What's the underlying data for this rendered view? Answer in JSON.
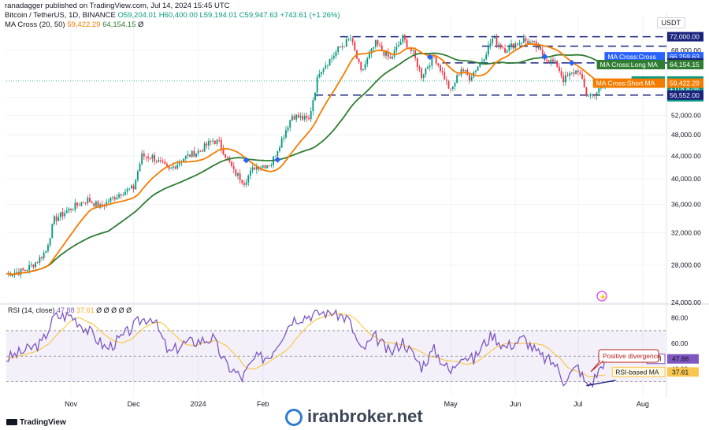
{
  "header": {
    "published": "ranadagger published on TradingView.com, Jul 14, 2024 15:45 UTC",
    "symbol": "Bitcoin / TetherUS, 1D, BINANCE",
    "ohlc": "O59,204.01 H60,400.00 L59,194.01 C59,947.63 +743.61 (+1.26%)",
    "ma": "MA Cross (20, 50)",
    "ma_short": "59,422.29",
    "ma_long": "64,154.15",
    "ma_tail": "Ø"
  },
  "currency": "USDT",
  "rsi_header": {
    "label": "RSI (14, close)",
    "value": "47.88",
    "ma_value": "37.61",
    "tail": "Ø Ø Ø Ø Ø"
  },
  "footer": {
    "brand": "TradingView",
    "watermark": "iranbroker.net"
  },
  "price_labels": [
    {
      "text": "72,000.00",
      "color": "#1a237e",
      "value": 72000
    },
    {
      "text": "MA Cross:Cross",
      "color": "#2962ff",
      "value": 66259.63,
      "val_text": "66,259.63"
    },
    {
      "text": "64,602.00",
      "color": "#1a237e",
      "value": 64602
    },
    {
      "text": "MA Cross:Long MA",
      "color": "#2e7d32",
      "value": 64154.15,
      "val_text": "64,154.15"
    },
    {
      "text": "BTCUSDT",
      "color": "#089981",
      "value": 59947.63,
      "val_text": "59,947.63",
      "extra": [
        "+118.87%",
        "08:14:34"
      ]
    },
    {
      "text": "MA Cross:Short MA",
      "color": "#f57c00",
      "value": 59422.29,
      "val_text": "59,422.29"
    },
    {
      "text": "56,552.00",
      "color": "#1a237e",
      "value": 56552
    }
  ],
  "annotation": "Positive divergence",
  "rsi_labels": [
    {
      "text": "RSI",
      "val_text": "47.88",
      "color": "#7e57c2"
    },
    {
      "text": "RSI-based MA",
      "val_text": "37.61",
      "color": "#f9c74f"
    }
  ],
  "colors": {
    "up": "#089981",
    "down": "#f23645",
    "short_ma": "#f57c00",
    "long_ma": "#2e7d32",
    "rsi": "#7e57c2",
    "rsi_ma": "#fbc02d",
    "levels": "#1a237e"
  },
  "chart_data": {
    "type": "candlestick",
    "price_axis": {
      "scale": "log",
      "ticks": [
        "24,000.00",
        "28,000.00",
        "32,000.00",
        "36,000.00",
        "40,000.00",
        "44,000.00",
        "48,000.00",
        "52,000.00",
        "56,000.00",
        "68,000.00"
      ],
      "tick_values": [
        24000,
        28000,
        32000,
        36000,
        40000,
        44000,
        48000,
        52000,
        56000,
        68000
      ],
      "ylim": [
        24000,
        76000
      ]
    },
    "x_axis": {
      "ticks": [
        "Nov",
        "Dec",
        "2024",
        "Feb",
        "May",
        "Jun",
        "Jul",
        "Aug"
      ],
      "tick_dates": [
        "2023-11-01",
        "2023-12-01",
        "2024-01-01",
        "2024-02-01",
        "2024-05-01",
        "2024-06-01",
        "2024-07-01",
        "2024-08-01"
      ],
      "range": [
        "2023-10-01",
        "2024-08-12"
      ]
    },
    "horizontal_levels": [
      72000,
      64602,
      56552
    ],
    "close_anchors": [
      [
        "2023-10-01",
        27000
      ],
      [
        "2023-10-10",
        27400
      ],
      [
        "2023-10-16",
        28500
      ],
      [
        "2023-10-20",
        29700
      ],
      [
        "2023-10-24",
        33800
      ],
      [
        "2023-11-01",
        35400
      ],
      [
        "2023-11-09",
        36700
      ],
      [
        "2023-11-15",
        35600
      ],
      [
        "2023-11-25",
        37800
      ],
      [
        "2023-12-01",
        38500
      ],
      [
        "2023-12-05",
        44000
      ],
      [
        "2023-12-10",
        43800
      ],
      [
        "2023-12-18",
        41400
      ],
      [
        "2023-12-25",
        43600
      ],
      [
        "2024-01-02",
        45000
      ],
      [
        "2024-01-08",
        46900
      ],
      [
        "2024-01-11",
        46400
      ],
      [
        "2024-01-18",
        41200
      ],
      [
        "2024-01-23",
        39500
      ],
      [
        "2024-01-28",
        42000
      ],
      [
        "2024-02-05",
        42600
      ],
      [
        "2024-02-10",
        47100
      ],
      [
        "2024-02-15",
        52000
      ],
      [
        "2024-02-23",
        51000
      ],
      [
        "2024-02-28",
        62500
      ],
      [
        "2024-03-05",
        66000
      ],
      [
        "2024-03-08",
        68300
      ],
      [
        "2024-03-14",
        71500
      ],
      [
        "2024-03-19",
        62000
      ],
      [
        "2024-03-26",
        70000
      ],
      [
        "2024-04-02",
        65500
      ],
      [
        "2024-04-08",
        71600
      ],
      [
        "2024-04-13",
        67000
      ],
      [
        "2024-04-17",
        61300
      ],
      [
        "2024-04-23",
        66500
      ],
      [
        "2024-05-01",
        57300
      ],
      [
        "2024-05-06",
        63200
      ],
      [
        "2024-05-10",
        60800
      ],
      [
        "2024-05-16",
        65300
      ],
      [
        "2024-05-21",
        71400
      ],
      [
        "2024-05-27",
        68400
      ],
      [
        "2024-06-05",
        71100
      ],
      [
        "2024-06-10",
        69600
      ],
      [
        "2024-06-15",
        66200
      ],
      [
        "2024-06-21",
        64000
      ],
      [
        "2024-06-24",
        60300
      ],
      [
        "2024-07-01",
        62800
      ],
      [
        "2024-07-05",
        56600
      ],
      [
        "2024-07-08",
        56700
      ],
      [
        "2024-07-12",
        57900
      ],
      [
        "2024-07-14",
        59947.63
      ]
    ],
    "rsi": {
      "axis_ticks": [
        "40.00",
        "60.00",
        "80.00"
      ],
      "tick_values": [
        40,
        60,
        80
      ],
      "ylim": [
        23,
        86
      ],
      "band": [
        30,
        70
      ],
      "anchors": [
        [
          "2023-10-01",
          48
        ],
        [
          "2023-10-18",
          60
        ],
        [
          "2023-10-24",
          81
        ],
        [
          "2023-11-01",
          82
        ],
        [
          "2023-11-10",
          69
        ],
        [
          "2023-11-18",
          56
        ],
        [
          "2023-11-25",
          64
        ],
        [
          "2023-12-04",
          78
        ],
        [
          "2023-12-10",
          81
        ],
        [
          "2023-12-18",
          52
        ],
        [
          "2023-12-25",
          60
        ],
        [
          "2024-01-08",
          64
        ],
        [
          "2024-01-14",
          44
        ],
        [
          "2024-01-22",
          33
        ],
        [
          "2024-01-28",
          48
        ],
        [
          "2024-02-04",
          50
        ],
        [
          "2024-02-15",
          79
        ],
        [
          "2024-02-28",
          84
        ],
        [
          "2024-03-05",
          85
        ],
        [
          "2024-03-13",
          79
        ],
        [
          "2024-03-19",
          54
        ],
        [
          "2024-03-26",
          65
        ],
        [
          "2024-04-02",
          52
        ],
        [
          "2024-04-08",
          62
        ],
        [
          "2024-04-17",
          42
        ],
        [
          "2024-04-23",
          55
        ],
        [
          "2024-05-01",
          37
        ],
        [
          "2024-05-06",
          52
        ],
        [
          "2024-05-12",
          47
        ],
        [
          "2024-05-16",
          58
        ],
        [
          "2024-05-21",
          67
        ],
        [
          "2024-05-27",
          57
        ],
        [
          "2024-06-05",
          64
        ],
        [
          "2024-06-13",
          50
        ],
        [
          "2024-06-20",
          44
        ],
        [
          "2024-06-24",
          31
        ],
        [
          "2024-07-01",
          42
        ],
        [
          "2024-07-05",
          27
        ],
        [
          "2024-07-08",
          30
        ],
        [
          "2024-07-12",
          42
        ],
        [
          "2024-07-14",
          47.88
        ]
      ]
    }
  }
}
